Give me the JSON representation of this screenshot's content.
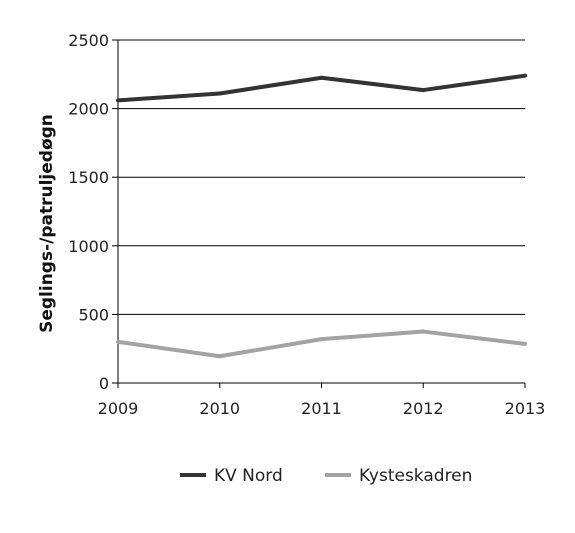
{
  "chart_data": {
    "type": "line",
    "title": "",
    "xlabel": "",
    "ylabel": "Seglings-/patruljedøgn",
    "x": [
      "2009",
      "2010",
      "2011",
      "2012",
      "2013"
    ],
    "ylim": [
      0,
      2500
    ],
    "yticks": [
      0,
      500,
      1000,
      1500,
      2000,
      2500
    ],
    "grid": "horizontal",
    "legend_position": "bottom",
    "series": [
      {
        "name": "KV Nord",
        "color": "#333333",
        "values": [
          2060,
          2110,
          2225,
          2135,
          2240
        ]
      },
      {
        "name": "Kysteskadren",
        "color": "#a3a3a3",
        "values": [
          300,
          195,
          320,
          375,
          285
        ]
      }
    ]
  }
}
